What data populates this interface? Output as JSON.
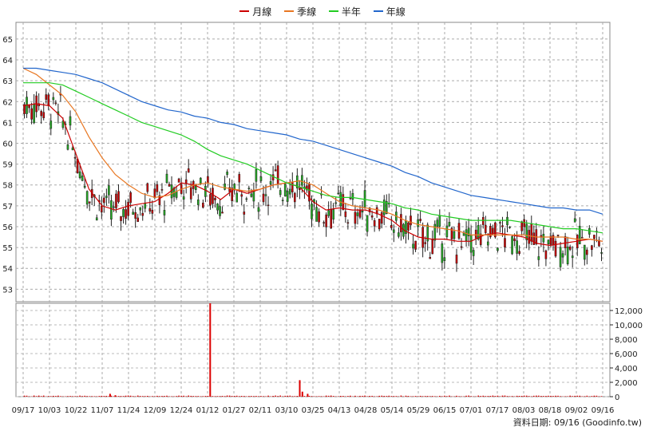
{
  "legend": [
    {
      "label": "月線",
      "color": "#cc0000"
    },
    {
      "label": "季線",
      "color": "#e87722"
    },
    {
      "label": "半年",
      "color": "#22cc22"
    },
    {
      "label": "年線",
      "color": "#2266cc"
    }
  ],
  "footer": {
    "text": "資料日期: 09/16  (Goodinfo.tw)"
  },
  "chart_data": {
    "type": "candlestick",
    "x_ticks": [
      "09/17",
      "10/03",
      "10/22",
      "11/07",
      "11/24",
      "12/09",
      "12/24",
      "01/12",
      "01/27",
      "02/11",
      "03/10",
      "03/25",
      "04/13",
      "04/28",
      "05/14",
      "05/29",
      "06/15",
      "07/01",
      "07/17",
      "08/03",
      "08/18",
      "09/02",
      "09/16"
    ],
    "price_axis": {
      "ylim": [
        52.4,
        65.8
      ],
      "ticks": [
        53,
        54,
        55,
        56,
        57,
        58,
        59,
        60,
        61,
        62,
        63,
        64,
        65
      ]
    },
    "volume_axis": {
      "ylim": [
        0,
        13000
      ],
      "ticks": [
        "0",
        "2,000",
        "4,000",
        "6,000",
        "8,000",
        "10,000",
        "12,000"
      ],
      "tick_values": [
        0,
        2000,
        4000,
        6000,
        8000,
        10000,
        12000
      ]
    },
    "series": [
      {
        "name": "月線",
        "color": "#cc0000",
        "points": [
          [
            0,
            61.8
          ],
          [
            0.5,
            61.9
          ],
          [
            1,
            61.8
          ],
          [
            1.5,
            61.2
          ],
          [
            2,
            59.5
          ],
          [
            2.5,
            57.8
          ],
          [
            3,
            57.0
          ],
          [
            3.5,
            56.8
          ],
          [
            4,
            57.0
          ],
          [
            4.5,
            57.1
          ],
          [
            5,
            57.2
          ],
          [
            5.5,
            57.6
          ],
          [
            6,
            58.1
          ],
          [
            6.5,
            58.0
          ],
          [
            7,
            57.7
          ],
          [
            7.5,
            57.3
          ],
          [
            8,
            57.8
          ],
          [
            8.5,
            57.6
          ],
          [
            9,
            57.8
          ],
          [
            9.5,
            58.0
          ],
          [
            10,
            58.1
          ],
          [
            10.5,
            57.9
          ],
          [
            11,
            57.2
          ],
          [
            11.5,
            56.8
          ],
          [
            12,
            56.9
          ],
          [
            12.5,
            56.8
          ],
          [
            13,
            56.8
          ],
          [
            13.5,
            56.6
          ],
          [
            14,
            56.3
          ],
          [
            14.5,
            55.8
          ],
          [
            15,
            55.5
          ],
          [
            15.5,
            55.4
          ],
          [
            16,
            55.4
          ],
          [
            16.5,
            55.3
          ],
          [
            17,
            55.3
          ],
          [
            17.5,
            55.6
          ],
          [
            18,
            55.7
          ],
          [
            18.5,
            55.6
          ],
          [
            19,
            55.5
          ],
          [
            19.5,
            55.2
          ],
          [
            20,
            55.1
          ],
          [
            20.5,
            55.2
          ],
          [
            21,
            55.3
          ],
          [
            21.5,
            55.4
          ],
          [
            22,
            55.3
          ]
        ]
      },
      {
        "name": "季線",
        "color": "#e87722",
        "points": [
          [
            0,
            63.6
          ],
          [
            0.5,
            63.3
          ],
          [
            1,
            62.8
          ],
          [
            1.5,
            62.3
          ],
          [
            2,
            61.5
          ],
          [
            2.5,
            60.3
          ],
          [
            3,
            59.3
          ],
          [
            3.5,
            58.5
          ],
          [
            4,
            58.0
          ],
          [
            4.5,
            57.6
          ],
          [
            5,
            57.4
          ],
          [
            5.5,
            57.5
          ],
          [
            6,
            57.8
          ],
          [
            6.5,
            58.0
          ],
          [
            7,
            58.1
          ],
          [
            7.5,
            57.9
          ],
          [
            8,
            57.8
          ],
          [
            8.5,
            57.7
          ],
          [
            9,
            57.8
          ],
          [
            9.5,
            58.0
          ],
          [
            10,
            58.1
          ],
          [
            10.5,
            58.2
          ],
          [
            11,
            58.0
          ],
          [
            11.5,
            57.6
          ],
          [
            12,
            57.2
          ],
          [
            12.5,
            57.0
          ],
          [
            13,
            56.9
          ],
          [
            13.5,
            56.8
          ],
          [
            14,
            56.6
          ],
          [
            14.5,
            56.3
          ],
          [
            15,
            56.1
          ],
          [
            15.5,
            56.0
          ],
          [
            16,
            55.9
          ],
          [
            16.5,
            55.8
          ],
          [
            17,
            55.6
          ],
          [
            17.5,
            55.6
          ],
          [
            18,
            55.6
          ],
          [
            18.5,
            55.6
          ],
          [
            19,
            55.6
          ],
          [
            19.5,
            55.5
          ],
          [
            20,
            55.5
          ],
          [
            20.5,
            55.5
          ],
          [
            21,
            55.4
          ],
          [
            21.5,
            55.4
          ],
          [
            22,
            55.3
          ]
        ]
      },
      {
        "name": "半年",
        "color": "#22cc22",
        "points": [
          [
            0,
            62.9
          ],
          [
            0.5,
            62.9
          ],
          [
            1,
            62.9
          ],
          [
            1.5,
            62.8
          ],
          [
            2,
            62.5
          ],
          [
            2.5,
            62.2
          ],
          [
            3,
            61.9
          ],
          [
            3.5,
            61.6
          ],
          [
            4,
            61.3
          ],
          [
            4.5,
            61.0
          ],
          [
            5,
            60.8
          ],
          [
            5.5,
            60.6
          ],
          [
            6,
            60.4
          ],
          [
            6.5,
            60.1
          ],
          [
            7,
            59.7
          ],
          [
            7.5,
            59.4
          ],
          [
            8,
            59.2
          ],
          [
            8.5,
            59.0
          ],
          [
            9,
            58.7
          ],
          [
            9.5,
            58.4
          ],
          [
            10,
            58.1
          ],
          [
            10.5,
            57.9
          ],
          [
            11,
            57.7
          ],
          [
            11.5,
            57.5
          ],
          [
            12,
            57.4
          ],
          [
            12.5,
            57.4
          ],
          [
            13,
            57.3
          ],
          [
            13.5,
            57.2
          ],
          [
            14,
            57.1
          ],
          [
            14.5,
            56.9
          ],
          [
            15,
            56.8
          ],
          [
            15.5,
            56.6
          ],
          [
            16,
            56.5
          ],
          [
            16.5,
            56.4
          ],
          [
            17,
            56.3
          ],
          [
            17.5,
            56.3
          ],
          [
            18,
            56.3
          ],
          [
            18.5,
            56.3
          ],
          [
            19,
            56.2
          ],
          [
            19.5,
            56.1
          ],
          [
            20,
            56.0
          ],
          [
            20.5,
            55.9
          ],
          [
            21,
            55.9
          ],
          [
            21.5,
            55.8
          ],
          [
            22,
            55.7
          ]
        ]
      },
      {
        "name": "年線",
        "color": "#2266cc",
        "points": [
          [
            0,
            63.6
          ],
          [
            0.5,
            63.6
          ],
          [
            1,
            63.5
          ],
          [
            1.5,
            63.4
          ],
          [
            2,
            63.3
          ],
          [
            2.5,
            63.1
          ],
          [
            3,
            62.9
          ],
          [
            3.5,
            62.6
          ],
          [
            4,
            62.3
          ],
          [
            4.5,
            62.0
          ],
          [
            5,
            61.8
          ],
          [
            5.5,
            61.6
          ],
          [
            6,
            61.5
          ],
          [
            6.5,
            61.3
          ],
          [
            7,
            61.2
          ],
          [
            7.5,
            61.0
          ],
          [
            8,
            60.9
          ],
          [
            8.5,
            60.7
          ],
          [
            9,
            60.6
          ],
          [
            9.5,
            60.5
          ],
          [
            10,
            60.4
          ],
          [
            10.5,
            60.2
          ],
          [
            11,
            60.1
          ],
          [
            11.5,
            59.9
          ],
          [
            12,
            59.7
          ],
          [
            12.5,
            59.5
          ],
          [
            13,
            59.3
          ],
          [
            13.5,
            59.1
          ],
          [
            14,
            58.9
          ],
          [
            14.5,
            58.6
          ],
          [
            15,
            58.4
          ],
          [
            15.5,
            58.1
          ],
          [
            16,
            57.9
          ],
          [
            16.5,
            57.7
          ],
          [
            17,
            57.5
          ],
          [
            17.5,
            57.4
          ],
          [
            18,
            57.3
          ],
          [
            18.5,
            57.2
          ],
          [
            19,
            57.1
          ],
          [
            19.5,
            57.0
          ],
          [
            20,
            56.9
          ],
          [
            20.5,
            56.9
          ],
          [
            21,
            56.8
          ],
          [
            21.5,
            56.8
          ],
          [
            22,
            56.6
          ]
        ]
      }
    ],
    "volume_spikes": [
      [
        3.3,
        400
      ],
      [
        3.5,
        200
      ],
      [
        7.1,
        13000
      ],
      [
        10.5,
        2300
      ],
      [
        10.6,
        700
      ],
      [
        10.8,
        400
      ]
    ]
  }
}
